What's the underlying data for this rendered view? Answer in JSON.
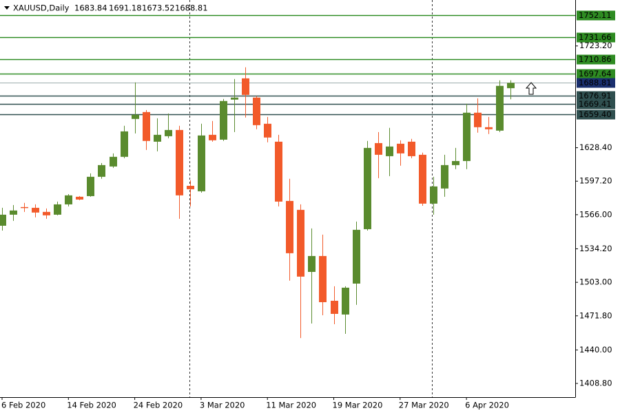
{
  "chart_data": {
    "type": "candlestick",
    "title": "XAUUSD,Daily",
    "categories": [
      "6 Feb 2020",
      null,
      null,
      null,
      null,
      null,
      "14 Feb 2020",
      null,
      null,
      null,
      null,
      null,
      "24 Feb 2020",
      null,
      null,
      null,
      null,
      null,
      "3 Mar 2020",
      null,
      null,
      null,
      null,
      null,
      "11 Mar 2020",
      null,
      null,
      null,
      null,
      null,
      "19 Mar 2020",
      null,
      null,
      null,
      null,
      null,
      "27 Mar 2020",
      null,
      null,
      null,
      null,
      null,
      "6 Apr 2020",
      null,
      null,
      null,
      null
    ],
    "open": [
      1555.7,
      1566.0,
      1573.1,
      1572.4,
      1568.6,
      1566.0,
      1575.6,
      1582.7,
      1583.3,
      1601.3,
      1610.9,
      1619.9,
      1655.2,
      1661.6,
      1634.0,
      1639.1,
      1644.9,
      1592.9,
      1587.8,
      1640.4,
      1635.9,
      1673.2,
      1693.0,
      1675.1,
      1650.7,
      1634.0,
      1578.8,
      1570.5,
      1512.7,
      1527.5,
      1485.8,
      1473.0,
      1501.8,
      1552.5,
      1632.7,
      1620.5,
      1632.1,
      1634.0,
      1621.8,
      1576.3,
      1590.4,
      1612.2,
      1616.0,
      1661.0,
      1647.5,
      1644.3,
      1683.84
    ],
    "high": [
      1572.4,
      1575.0,
      1577.0,
      1575.6,
      1571.8,
      1578.2,
      1585.2,
      1583.3,
      1604.5,
      1614.1,
      1623.1,
      1648.8,
      1689.2,
      1663.5,
      1655.8,
      1660.3,
      1648.8,
      1598.1,
      1650.7,
      1653.3,
      1673.8,
      1692.4,
      1703.3,
      1676.4,
      1657.1,
      1640.4,
      1599.4,
      1575.6,
      1553.2,
      1547.4,
      1499.3,
      1499.3,
      1559.6,
      1634.7,
      1643.0,
      1646.9,
      1635.3,
      1636.6,
      1623.8,
      1601.3,
      1621.8,
      1628.2,
      1669.3,
      1674.4,
      1657.1,
      1691.1,
      1691.18
    ],
    "low": [
      1551.2,
      1560.2,
      1568.6,
      1563.5,
      1562.2,
      1565.4,
      1573.7,
      1579.5,
      1582.7,
      1599.4,
      1609.6,
      1618.6,
      1641.7,
      1626.3,
      1625.0,
      1637.2,
      1562.2,
      1573.7,
      1586.5,
      1634.0,
      1634.7,
      1643.0,
      1656.5,
      1645.6,
      1633.4,
      1573.7,
      1504.5,
      1451.1,
      1464.6,
      1472.3,
      1464.0,
      1455.0,
      1482.0,
      1551.2,
      1600.0,
      1601.9,
      1611.6,
      1618.6,
      1574.3,
      1566.0,
      1582.7,
      1608.4,
      1608.4,
      1642.4,
      1641.1,
      1643.0,
      1673.52
    ],
    "close": [
      1566.0,
      1569.9,
      1572.5,
      1568.0,
      1565.4,
      1575.6,
      1584.0,
      1580.1,
      1601.3,
      1612.2,
      1619.9,
      1643.6,
      1659.1,
      1634.7,
      1640.4,
      1644.9,
      1584.0,
      1589.7,
      1639.8,
      1635.3,
      1671.9,
      1675.1,
      1677.6,
      1649.4,
      1637.9,
      1578.2,
      1530.1,
      1508.3,
      1527.5,
      1484.5,
      1473.6,
      1498.0,
      1551.9,
      1628.2,
      1621.8,
      1629.5,
      1623.1,
      1620.5,
      1576.3,
      1592.3,
      1612.2,
      1616.0,
      1661.0,
      1647.5,
      1645.6,
      1686.0,
      1688.81
    ],
    "up_color": "#5a8b2e",
    "down_color": "#f25a2a",
    "price_color": "#1a2f6e",
    "ylim": [
      1396,
      1766
    ],
    "yticks": [
      {
        "value": 1408.8,
        "label": "1408.80"
      },
      {
        "value": 1440,
        "label": "1440.00"
      },
      {
        "value": 1471.8,
        "label": "1471.80"
      },
      {
        "value": 1503,
        "label": "1503.00"
      },
      {
        "value": 1534.2,
        "label": "1534.20"
      },
      {
        "value": 1566,
        "label": "1566.00"
      },
      {
        "value": 1597.2,
        "label": "1597.20"
      },
      {
        "value": 1628.4,
        "label": "1628.40"
      },
      {
        "value": 1723.2,
        "label": "1723.20"
      }
    ],
    "levels": [
      {
        "value": 1752.11,
        "label": "1752.11",
        "color": "#2e8b22"
      },
      {
        "value": 1731.66,
        "label": "1731.66",
        "color": "#2e8b22"
      },
      {
        "value": 1710.86,
        "label": "1710.86",
        "color": "#2e8b22"
      },
      {
        "value": 1697.64,
        "label": "1697.64",
        "color": "#2e8b22"
      },
      {
        "value": 1676.91,
        "label": "1676.91",
        "color": "#2f4f4f"
      },
      {
        "value": 1669.41,
        "label": "1669.41",
        "color": "#2f4f4f"
      },
      {
        "value": 1659.4,
        "label": "1659.40",
        "color": "#2f4f4f"
      }
    ]
  }
}
